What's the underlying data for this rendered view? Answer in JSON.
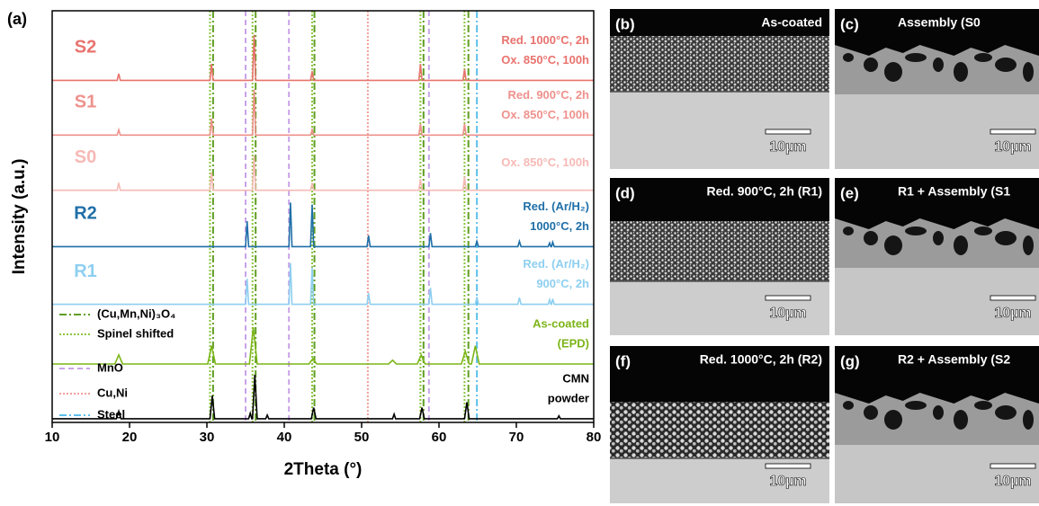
{
  "chart_data": {
    "type": "line",
    "panel_label": "(a)",
    "xlabel": "2Theta (°)",
    "ylabel": "Intensity (a.u.)",
    "xlim": [
      10,
      80
    ],
    "xticks": [
      10,
      20,
      30,
      40,
      50,
      60,
      70,
      80
    ],
    "ylim": [
      0,
      100
    ],
    "series": [
      {
        "name": "S2",
        "color": "#e8736e",
        "note": [
          "Red. 1000°C, 2h",
          "Ox. 850°C, 100h"
        ],
        "x": [
          10,
          18.4,
          18.6,
          18.8,
          30.4,
          30.6,
          30.8,
          35.9,
          36.1,
          36.3,
          43.4,
          43.6,
          43.8,
          57.4,
          57.6,
          57.8,
          63.1,
          63.3,
          63.5,
          80
        ],
        "values": [
          83.1,
          83.1,
          84.7,
          83.1,
          83.1,
          87.1,
          83.1,
          83.1,
          94.2,
          83.1,
          83.1,
          85.3,
          83.1,
          83.1,
          87.1,
          83.1,
          83.1,
          85.8,
          83.1,
          83.1
        ]
      },
      {
        "name": "S1",
        "color": "#ee918c",
        "note": [
          "Red. 900°C, 2h",
          "Ox. 850°C, 100h"
        ],
        "x": [
          10,
          18.4,
          18.6,
          18.8,
          30.4,
          30.6,
          30.8,
          35.9,
          36.1,
          36.3,
          43.4,
          43.6,
          43.8,
          57.4,
          57.6,
          57.8,
          63.1,
          63.3,
          63.5,
          80
        ],
        "values": [
          69.8,
          69.8,
          71.1,
          69.8,
          69.8,
          73.8,
          69.8,
          69.8,
          80.9,
          69.8,
          69.8,
          71.1,
          69.8,
          69.8,
          72.5,
          69.8,
          69.8,
          72.5,
          69.8,
          69.8
        ]
      },
      {
        "name": "S0",
        "color": "#f6b9b5",
        "note": [
          "Ox. 850°C, 100h"
        ],
        "x": [
          10,
          18.4,
          18.6,
          18.8,
          30.4,
          30.6,
          30.8,
          35.9,
          36.1,
          36.3,
          43.4,
          43.6,
          43.8,
          57.4,
          57.6,
          57.8,
          63.1,
          63.3,
          63.5,
          80
        ],
        "values": [
          56.4,
          56.4,
          58.2,
          56.4,
          56.4,
          60.8,
          56.4,
          56.4,
          64.8,
          56.4,
          56.4,
          58.2,
          56.4,
          56.4,
          59.1,
          56.4,
          56.4,
          59.7,
          56.4,
          56.4
        ]
      },
      {
        "name": "R2",
        "color": "#1f6fa8",
        "note": [
          "Red. (Ar/H₂)",
          "1000°C, 2h"
        ],
        "x": [
          10,
          35,
          35.2,
          35.4,
          40.6,
          40.8,
          41,
          43.4,
          43.6,
          43.8,
          50.7,
          50.9,
          51.1,
          58.7,
          58.9,
          59.1,
          64.7,
          64.9,
          65.1,
          70.2,
          70.4,
          70.6,
          74.1,
          74.3,
          74.45,
          74.55,
          74.7,
          74.9,
          80
        ],
        "values": [
          42.7,
          42.7,
          48.9,
          42.7,
          42.7,
          53.4,
          42.7,
          42.7,
          52.9,
          42.7,
          42.7,
          45.4,
          42.7,
          42.7,
          46,
          42.7,
          42.7,
          44,
          42.7,
          42.7,
          44,
          42.7,
          42.7,
          43.6,
          42.7,
          42.7,
          43.8,
          42.7,
          42.7
        ]
      },
      {
        "name": "R1",
        "color": "#8ecff0",
        "note": [
          "Red. (Ar/H₂)",
          "900°C, 2h"
        ],
        "x": [
          10,
          35,
          35.2,
          35.4,
          40.6,
          40.8,
          41,
          43.4,
          43.6,
          43.8,
          50.7,
          50.9,
          51.1,
          58.7,
          58.9,
          59.1,
          64.7,
          64.9,
          65.1,
          70.2,
          70.4,
          70.6,
          74.1,
          74.3,
          74.45,
          74.55,
          74.7,
          74.9,
          80
        ],
        "values": [
          28.7,
          28.7,
          34.9,
          28.7,
          28.7,
          38.7,
          28.7,
          28.7,
          37.6,
          28.7,
          28.7,
          31.4,
          28.7,
          28.7,
          32.7,
          28.7,
          28.7,
          30.5,
          28.7,
          28.7,
          30.3,
          28.7,
          28.7,
          29.8,
          28.7,
          28.7,
          30,
          28.7,
          28.7
        ]
      },
      {
        "color": "#7cb518",
        "note": [
          "As-coated",
          "(EPD)"
        ],
        "x": [
          10,
          18.1,
          18.6,
          19.1,
          30.1,
          30.6,
          31.1,
          35.5,
          36,
          36.5,
          43.2,
          43.7,
          44.2,
          53.5,
          54,
          54.5,
          57.2,
          57.7,
          58.2,
          62.9,
          63.4,
          63.9,
          64.2,
          64.7,
          65.2,
          80
        ],
        "values": [
          14.2,
          14.2,
          16.4,
          14.2,
          14.2,
          18.6,
          14.2,
          14.2,
          23.1,
          14.2,
          14.2,
          15.5,
          14.2,
          14.2,
          15.1,
          14.2,
          14.2,
          16.4,
          14.2,
          14.2,
          17.3,
          14.2,
          14.2,
          18.6,
          14.2,
          14.2
        ]
      },
      {
        "color": "#000000",
        "note": [
          "CMN",
          "powder"
        ],
        "x": [
          10,
          18.3,
          18.6,
          18.9,
          30.4,
          30.7,
          31,
          35.4,
          35.6,
          35.8,
          35.9,
          36.2,
          36.5,
          37.6,
          37.8,
          38,
          43.5,
          43.8,
          44.1,
          54,
          54.2,
          54.4,
          57.5,
          57.8,
          58.1,
          63.3,
          63.6,
          63.9,
          75.3,
          75.5,
          75.7,
          80
        ],
        "values": [
          0.9,
          0.9,
          2.7,
          0.9,
          0.9,
          6.5,
          0.9,
          0.9,
          2.2,
          0.9,
          0.9,
          11.6,
          0.9,
          0.9,
          1.8,
          0.9,
          0.9,
          3.6,
          0.9,
          0.9,
          2,
          0.9,
          0.9,
          3.6,
          0.9,
          0.9,
          4.9,
          0.9,
          0.9,
          1.6,
          0.9,
          0.9
        ]
      }
    ],
    "reference_lines": [
      {
        "name": "(Cu,Mn,Ni)₃O₄",
        "color": "#5f9e22",
        "style": "dash-dot",
        "positions": [
          30.8,
          36.3,
          43.9,
          58.0,
          63.8
        ]
      },
      {
        "name": "Spinel shifted",
        "color": "#8cc63f",
        "style": "dotted",
        "positions": [
          30.4,
          35.9,
          43.6,
          57.6,
          63.3
        ]
      },
      {
        "name": "MnO",
        "color": "#c9a3e8",
        "style": "dashed",
        "positions": [
          35.0,
          40.6,
          58.7
        ]
      },
      {
        "name": "Cu,Ni",
        "color": "#f4a09a",
        "style": "dotted",
        "positions": [
          50.8
        ]
      },
      {
        "name": "Steel",
        "color": "#5bc0eb",
        "style": "dash-dot",
        "positions": [
          64.9
        ]
      }
    ]
  },
  "images": [
    {
      "label": "(b)",
      "title": "As-coated",
      "scale": "10µm"
    },
    {
      "label": "(c)",
      "title": "Assembly (S0",
      "scale": "10µm"
    },
    {
      "label": "(d)",
      "title": "Red. 900°C, 2h (R1)",
      "scale": "10µm"
    },
    {
      "label": "(e)",
      "title": "R1 + Assembly (S1",
      "scale": "10µm"
    },
    {
      "label": "(f)",
      "title": "Red. 1000°C, 2h (R2)",
      "scale": "10µm"
    },
    {
      "label": "(g)",
      "title": "R2 + Assembly (S2",
      "scale": "10µm"
    }
  ]
}
